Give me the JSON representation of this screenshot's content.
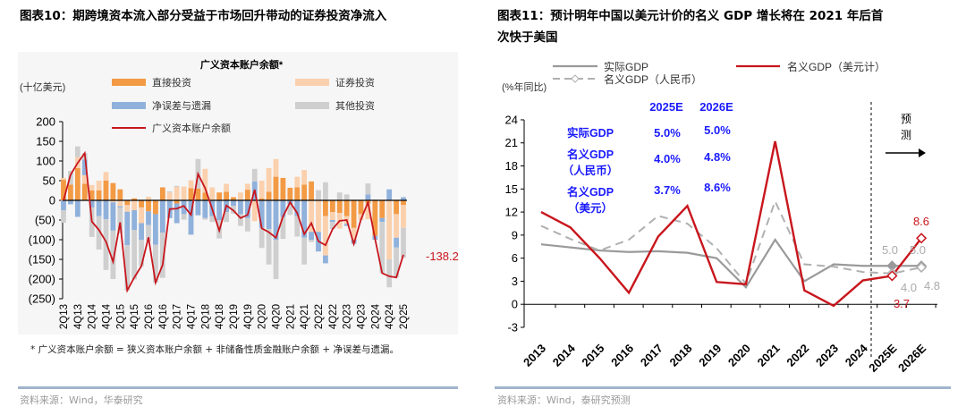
{
  "left": {
    "title": "图表10：期跨境资本流入部分受益于市场回升带动的证券投资净流入",
    "footnote": "* 广义资本账户余额 = 狭义资本账户余额 + 非储备性质金融账户余额 + 净误差与遗漏。",
    "source": "资料来源：Wind，华泰研究"
  },
  "right": {
    "title_line1": "图表11：预计明年中国以美元计价的名义 GDP 增长将在 2021 年后首",
    "title_line2": "次快于美国",
    "source": "资料来源：Wind，泰研究预测"
  },
  "chart_data": [
    {
      "type": "bar",
      "title": "广义资本账户余额*",
      "ylabel": "(十亿美元)",
      "ylim": [
        -250,
        200
      ],
      "yticks": [
        200,
        150,
        100,
        50,
        0,
        -50,
        -100,
        -150,
        -200,
        -250
      ],
      "ytick_labels": [
        "200",
        "150",
        "100",
        "50",
        "0",
        "(50)",
        "(100)",
        "(150)",
        "(200)",
        "(250)"
      ],
      "stacked": true,
      "categories": [
        "2Q13",
        "3Q13",
        "4Q13",
        "1Q14",
        "2Q14",
        "3Q14",
        "4Q14",
        "1Q15",
        "2Q15",
        "3Q15",
        "4Q15",
        "1Q16",
        "2Q16",
        "3Q16",
        "4Q16",
        "1Q17",
        "2Q17",
        "3Q17",
        "4Q17",
        "1Q18",
        "2Q18",
        "3Q18",
        "4Q18",
        "1Q19",
        "2Q19",
        "3Q19",
        "4Q19",
        "1Q20",
        "2Q20",
        "3Q20",
        "4Q20",
        "1Q21",
        "2Q21",
        "3Q21",
        "4Q21",
        "1Q22",
        "2Q22",
        "3Q22",
        "4Q22",
        "1Q23",
        "2Q23",
        "3Q23",
        "4Q23",
        "1Q24",
        "2Q24",
        "3Q24",
        "4Q24",
        "1Q25",
        "2Q25"
      ],
      "xtick_labels": [
        "2Q13",
        "4Q13",
        "2Q14",
        "4Q14",
        "2Q15",
        "4Q15",
        "2Q16",
        "4Q16",
        "2Q17",
        "4Q17",
        "2Q18",
        "4Q18",
        "2Q19",
        "4Q19",
        "2Q20",
        "4Q20",
        "2Q21",
        "4Q21",
        "2Q22",
        "4Q22",
        "2Q23",
        "4Q23",
        "2Q24",
        "4Q24",
        "2Q25"
      ],
      "series": [
        {
          "name": "直接投资",
          "kind": "bar",
          "color": "#f39a45",
          "values": [
            52,
            40,
            82,
            42,
            25,
            25,
            50,
            44,
            28,
            -12,
            5,
            -18,
            -28,
            -35,
            33,
            0,
            -8,
            0,
            31,
            30,
            20,
            0,
            20,
            22,
            8,
            0,
            27,
            0,
            5,
            22,
            60,
            57,
            32,
            33,
            40,
            48,
            0,
            -40,
            -30,
            -32,
            -40,
            -70,
            -35,
            -8,
            -90,
            -45,
            0,
            -35,
            -12
          ]
        },
        {
          "name": "证券投资",
          "kind": "bar",
          "color": "#fbd0ad",
          "values": [
            5,
            0,
            28,
            22,
            14,
            25,
            22,
            -5,
            -15,
            -17,
            -25,
            -40,
            9,
            0,
            0,
            20,
            34,
            35,
            20,
            0,
            60,
            33,
            0,
            20,
            0,
            20,
            15,
            -53,
            45,
            60,
            45,
            0,
            0,
            27,
            37,
            -80,
            -80,
            -100,
            -20,
            -40,
            -20,
            -30,
            -15,
            -40,
            0,
            0,
            -150,
            -60,
            -58
          ]
        },
        {
          "name": "净误差与遗漏",
          "kind": "bar",
          "color": "#8fb1db",
          "values": [
            -25,
            -10,
            -42,
            40,
            -18,
            -40,
            -48,
            -72,
            -3,
            -85,
            -50,
            -42,
            -35,
            -78,
            -82,
            -45,
            -50,
            -35,
            -87,
            -38,
            -45,
            -40,
            -50,
            -30,
            -14,
            -35,
            -45,
            48,
            -70,
            -73,
            -100,
            -42,
            -10,
            -40,
            -95,
            -20,
            -50,
            -20,
            -5,
            0,
            -5,
            -10,
            0,
            15,
            -10,
            -10,
            28,
            -25,
            8
          ]
        },
        {
          "name": "其他投资",
          "kind": "bar",
          "color": "#cfcfcf",
          "values": [
            -32,
            35,
            27,
            16,
            -75,
            -85,
            -129,
            -123,
            -66,
            -115,
            -126,
            -67,
            -40,
            -96,
            -115,
            3,
            3,
            -14,
            -1,
            75,
            -4,
            -15,
            -47,
            -25,
            -20,
            -30,
            -34,
            32,
            -51,
            -90,
            -100,
            -56,
            -27,
            -52,
            -68,
            -6,
            26,
            46,
            -18,
            20,
            15,
            -1,
            1,
            28,
            2,
            -130,
            -71,
            -76,
            -76
          ]
        },
        {
          "name": "广义资本账户余额",
          "kind": "line",
          "color": "#c8161d",
          "values": [
            0,
            65,
            95,
            120,
            -54,
            -75,
            -105,
            -156,
            -56,
            -229,
            -196,
            -167,
            -94,
            -209,
            -164,
            -22,
            -21,
            -14,
            -37,
            67,
            31,
            -22,
            -77,
            -13,
            -26,
            -45,
            -37,
            27,
            -71,
            -81,
            -95,
            -41,
            -5,
            -32,
            -86,
            -58,
            -104,
            -114,
            -73,
            -52,
            -50,
            -111,
            -49,
            -5,
            -98,
            -185,
            -193,
            -196,
            -138.2
          ]
        }
      ],
      "annotations": [
        {
          "text": "-138.2",
          "color": "#c8161d"
        }
      ],
      "legend_placement": "top",
      "grid": false
    },
    {
      "type": "line",
      "ylabel": "(%年同比)",
      "ylim": [
        -3,
        24
      ],
      "yticks": [
        24,
        21,
        18,
        15,
        12,
        9,
        6,
        3,
        0,
        -3
      ],
      "categories": [
        "2013",
        "2014",
        "2015",
        "2016",
        "2017",
        "2018",
        "2019",
        "2020",
        "2021",
        "2022",
        "2023",
        "2024",
        "2025E",
        "2026E"
      ],
      "series": [
        {
          "name": "实际GDP",
          "color": "#9a9a9a",
          "style": "solid",
          "values": [
            7.8,
            7.4,
            7.0,
            6.8,
            6.9,
            6.7,
            6.0,
            2.2,
            8.4,
            3.0,
            5.2,
            5.0,
            5.0,
            5.0
          ]
        },
        {
          "name": "名义GDP（人民币）",
          "color": "#b0b0b0",
          "style": "dashed",
          "values": [
            10.2,
            8.5,
            7.0,
            8.4,
            11.5,
            10.5,
            7.3,
            2.7,
            13.4,
            5.2,
            4.9,
            4.2,
            4.0,
            4.8
          ]
        },
        {
          "name": "名义GDP（美元计）",
          "color": "#c8161d",
          "style": "solid",
          "values": [
            12.0,
            10.0,
            6.0,
            1.5,
            8.8,
            12.8,
            2.9,
            2.6,
            21.2,
            1.8,
            -0.2,
            3.1,
            3.7,
            8.6
          ]
        }
      ],
      "forecast_label": "预测",
      "point_labels": [
        {
          "text": "5.0",
          "color": "#aaaaaa"
        },
        {
          "text": "5.0",
          "color": "#aaaaaa"
        },
        {
          "text": "4.0",
          "color": "#aaaaaa"
        },
        {
          "text": "4.8",
          "color": "#aaaaaa"
        },
        {
          "text": "3.7",
          "color": "#c8161d"
        },
        {
          "text": "8.6",
          "color": "#c8161d"
        }
      ],
      "table": {
        "color": "#1a1aff",
        "headers": [
          "2025E",
          "2026E"
        ],
        "rows": [
          {
            "label": [
              "实际GDP"
            ],
            "values": [
              "5.0%",
              "5.0%"
            ]
          },
          {
            "label": [
              "名义GDP",
              "（人民币）"
            ],
            "values": [
              "4.0%",
              "4.8%"
            ]
          },
          {
            "label": [
              "名义GDP",
              "（美元）"
            ],
            "values": [
              "3.7%",
              "8.6%"
            ]
          }
        ]
      },
      "legend_placement": "top",
      "grid": false
    }
  ]
}
